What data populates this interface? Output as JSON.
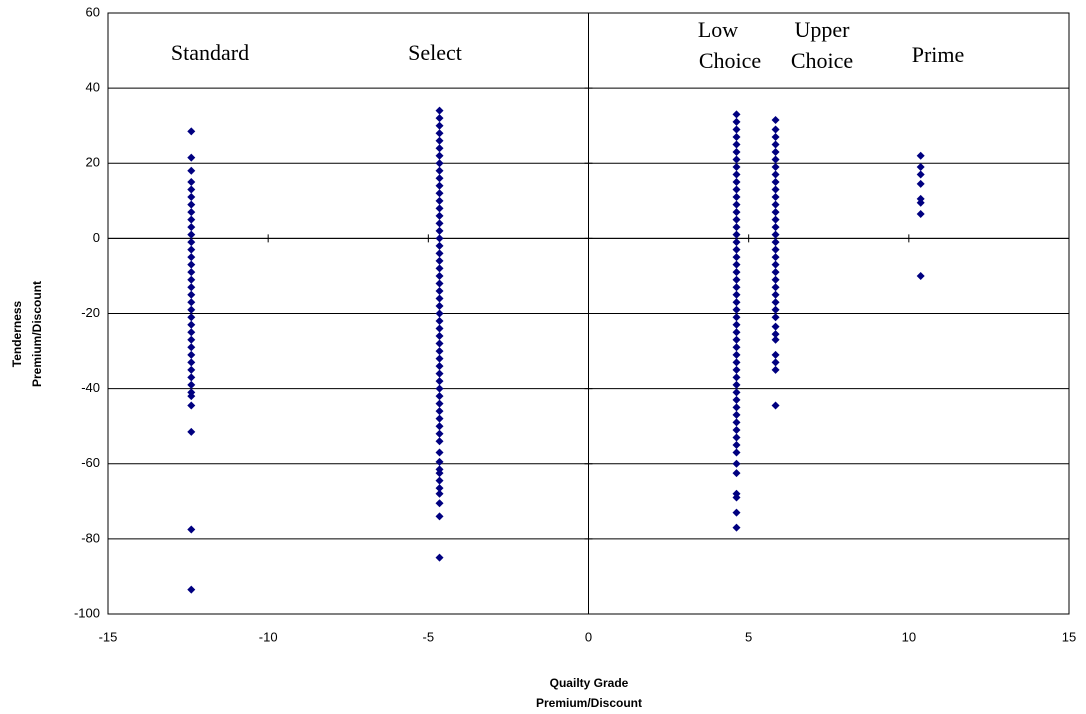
{
  "chart_data": {
    "type": "scatter",
    "xlabel": [
      "Quailty Grade",
      "Premium/Discount"
    ],
    "ylabel": [
      "Tenderness",
      "Premium/Discount"
    ],
    "annotations": [
      "Standard",
      "Select",
      "Low",
      "Choice",
      "Upper",
      "Choice",
      "Prime"
    ],
    "xlim": [
      -15,
      15
    ],
    "ylim": [
      -100,
      60
    ],
    "xticks": [
      -15,
      -10,
      -5,
      0,
      5,
      10,
      15
    ],
    "yticks": [
      -100,
      -80,
      -60,
      -40,
      -20,
      0,
      20,
      40,
      60
    ],
    "grid": true,
    "color": "#000080",
    "series": [
      {
        "x": -12.4,
        "values": [
          28.5,
          21.5,
          18,
          15,
          13,
          11,
          9,
          7,
          5,
          3,
          1,
          -1,
          -3,
          -5,
          -7,
          -9,
          -11,
          -13,
          -15,
          -17,
          -19,
          -21,
          -23,
          -25,
          -27,
          -29,
          -31,
          -33,
          -35,
          -37,
          -39,
          -41,
          -42,
          -44.5,
          -51.5,
          -77.5,
          -93.5
        ]
      },
      {
        "x": -4.65,
        "values": [
          34,
          32,
          30,
          28,
          26,
          24,
          22,
          20,
          18,
          16,
          14,
          12,
          10,
          8,
          6,
          4,
          2,
          0,
          -2,
          -4,
          -6,
          -8,
          -10,
          -12,
          -14,
          -16,
          -18,
          -20,
          -22,
          -24,
          -26,
          -28,
          -30,
          -32,
          -34,
          -36,
          -38,
          -40,
          -42,
          -44,
          -46,
          -48,
          -50,
          -52,
          -54,
          -57,
          -59.5,
          -61.5,
          -62.5,
          -64.5,
          -66.5,
          -68,
          -70.5,
          -74,
          -85
        ]
      },
      {
        "x": 4.62,
        "values": [
          33,
          31,
          29,
          27,
          25,
          23,
          21,
          19,
          17,
          15,
          13,
          11,
          9,
          7,
          5,
          3,
          1,
          -1,
          -3,
          -5,
          -7,
          -9,
          -11,
          -13,
          -15,
          -17,
          -19,
          -21,
          -23,
          -25,
          -27,
          -29,
          -31,
          -33,
          -35,
          -37,
          -39,
          -41,
          -43,
          -45,
          -47,
          -49,
          -51,
          -53,
          -55,
          -57,
          -60,
          -62.5,
          -68,
          -69,
          -73,
          -77
        ]
      },
      {
        "x": 5.84,
        "values": [
          31.5,
          29,
          27,
          25,
          23,
          21,
          19,
          17,
          15,
          13,
          11,
          9,
          7,
          5,
          3,
          1,
          -1,
          -3,
          -5,
          -7,
          -9,
          -11,
          -13,
          -15,
          -17,
          -19,
          -21,
          -23.5,
          -25.5,
          -27,
          -31,
          -33,
          -35,
          -44.5
        ]
      },
      {
        "x": 10.37,
        "values": [
          22,
          19,
          17,
          14.5,
          10.5,
          9.5,
          6.5,
          -10
        ]
      }
    ]
  }
}
